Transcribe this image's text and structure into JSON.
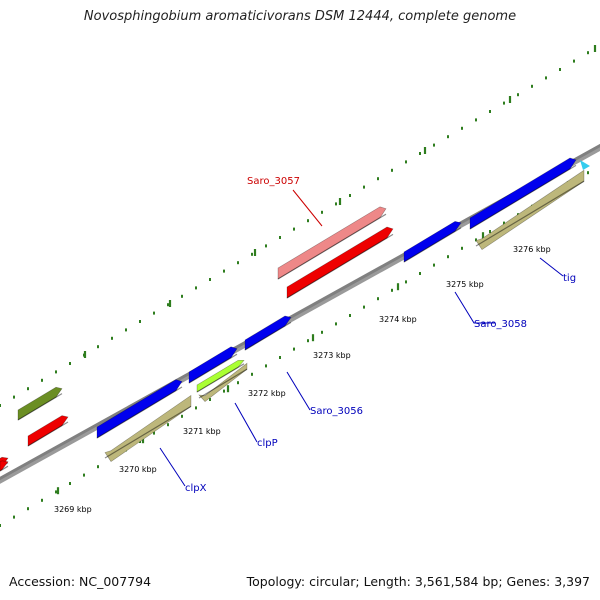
{
  "title": "Novosphingobium aromaticivorans DSM 12444, complete genome",
  "footer": {
    "accession": "Accession: NC_007794",
    "summary": "Topology: circular; Length: 3,561,584 bp; Genes: 3,397"
  },
  "colors": {
    "backbone": "#808080",
    "tick": "#2e7d1e",
    "cds_blue": "#0000ee",
    "cds_red": "#ee0000",
    "cds_pink": "#ee8888",
    "cds_khaki": "#bdb77b",
    "cds_olive": "#6b8e23",
    "cds_lime": "#aaff33",
    "label_blue": "#0000bb",
    "label_red": "#cc0000",
    "marker_cyan": "#33ccee"
  },
  "tick_labels": [
    {
      "text": "3269 kbp"
    },
    {
      "text": "3270 kbp"
    },
    {
      "text": "3271 kbp"
    },
    {
      "text": "3272 kbp"
    },
    {
      "text": "3273 kbp"
    },
    {
      "text": "3274 kbp"
    },
    {
      "text": "3275 kbp"
    },
    {
      "text": "3276 kbp"
    }
  ],
  "gene_labels": [
    {
      "text": "Saro_3057",
      "color": "red"
    },
    {
      "text": "Saro_3058",
      "color": "blue"
    },
    {
      "text": "tig",
      "color": "blue"
    },
    {
      "text": "Saro_3056",
      "color": "blue"
    },
    {
      "text": "clpP",
      "color": "blue"
    },
    {
      "text": "clpX",
      "color": "blue"
    }
  ]
}
